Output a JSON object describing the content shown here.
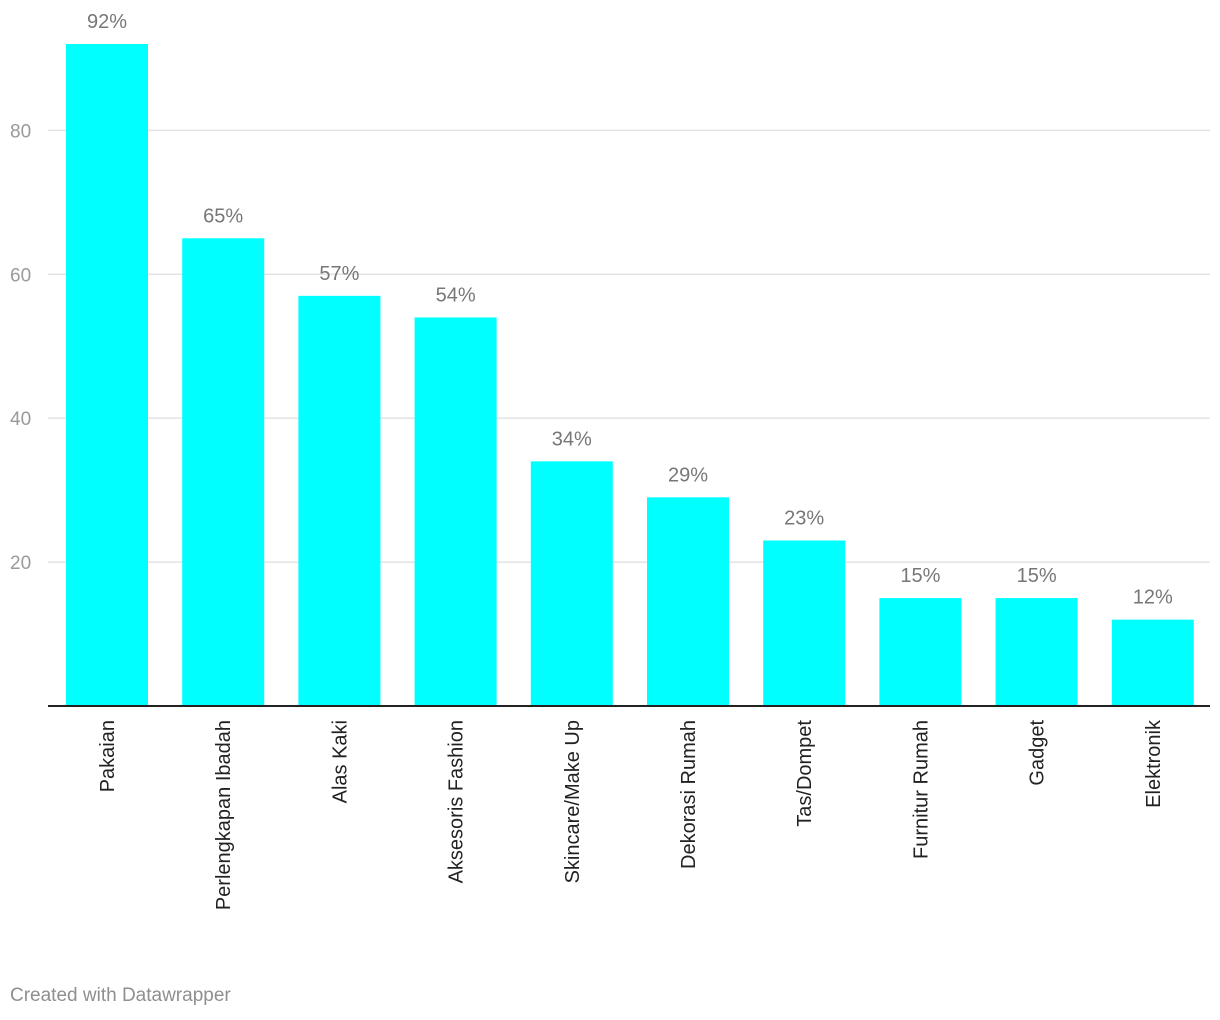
{
  "chart_data": {
    "type": "bar",
    "categories": [
      "Pakaian",
      "Perlengkapan Ibadah",
      "Alas Kaki",
      "Aksesoris Fashion",
      "Skincare/Make Up",
      "Dekorasi Rumah",
      "Tas/Dompet",
      "Furnitur Rumah",
      "Gadget",
      "Elektronik"
    ],
    "values": [
      92,
      65,
      57,
      54,
      34,
      29,
      23,
      15,
      15,
      12
    ],
    "value_labels": [
      "92%",
      "65%",
      "57%",
      "54%",
      "34%",
      "29%",
      "23%",
      "15%",
      "15%",
      "12%"
    ],
    "yticks": [
      20,
      40,
      60,
      80
    ],
    "ylim": [
      0,
      92
    ],
    "grid": true,
    "bar_color": "#00ffff",
    "title": "",
    "xlabel": "",
    "ylabel": ""
  },
  "footer": {
    "credit": "Created with Datawrapper"
  }
}
